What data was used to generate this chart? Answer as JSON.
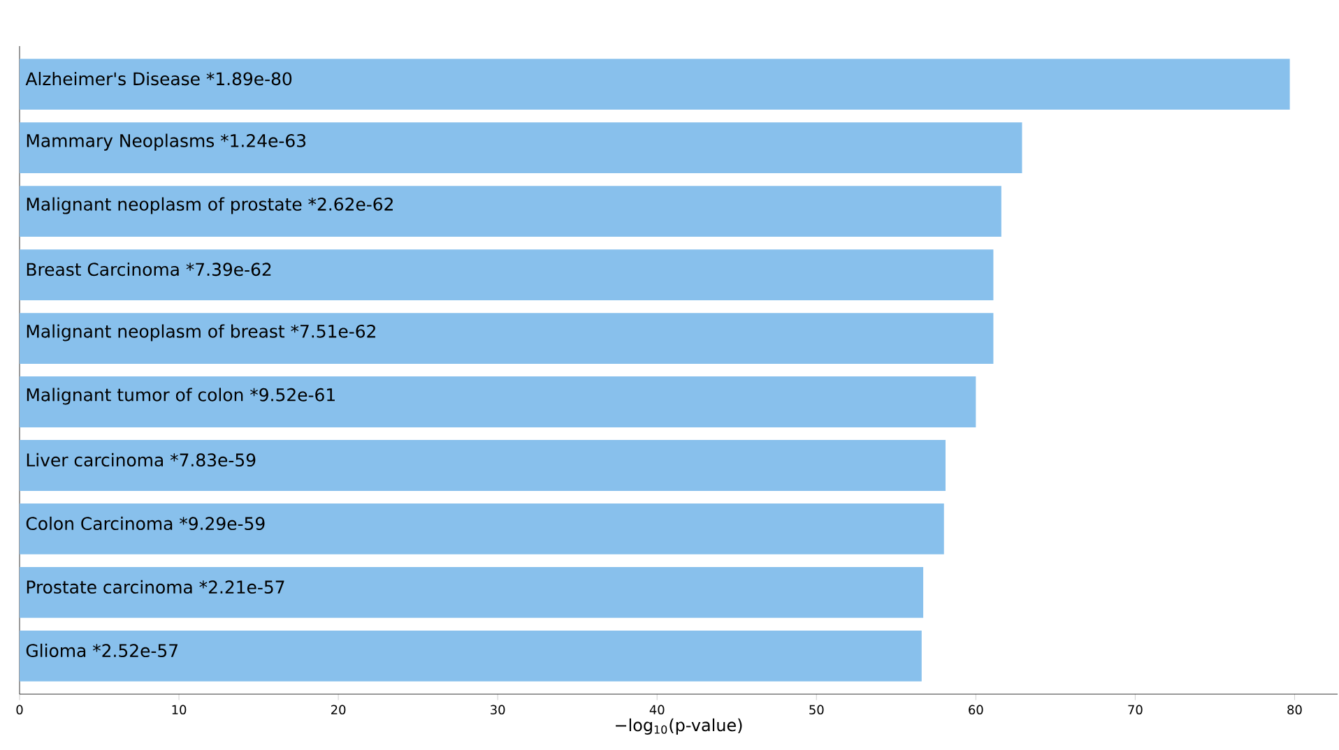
{
  "chart_data": {
    "type": "bar",
    "orientation": "horizontal",
    "categories": [
      "Alzheimer's Disease  *1.89e-80",
      "Mammary Neoplasms  *1.24e-63",
      "Malignant neoplasm of prostate  *2.62e-62",
      "Breast Carcinoma  *7.39e-62",
      "Malignant neoplasm of breast  *7.51e-62",
      "Malignant tumor of colon  *9.52e-61",
      "Liver carcinoma  *7.83e-59",
      "Colon Carcinoma  *9.29e-59",
      "Prostate carcinoma  *2.21e-57",
      "Glioma  *2.52e-57"
    ],
    "values": [
      79.7,
      62.9,
      61.6,
      61.1,
      61.1,
      60.0,
      58.1,
      58.0,
      56.7,
      56.6
    ],
    "color": "#88c0ec",
    "xlim": [
      0,
      82.7
    ],
    "xticks": [
      0,
      10,
      20,
      30,
      40,
      50,
      60,
      70,
      80
    ],
    "xlabel": "−log$_{10}$(p-value)"
  }
}
